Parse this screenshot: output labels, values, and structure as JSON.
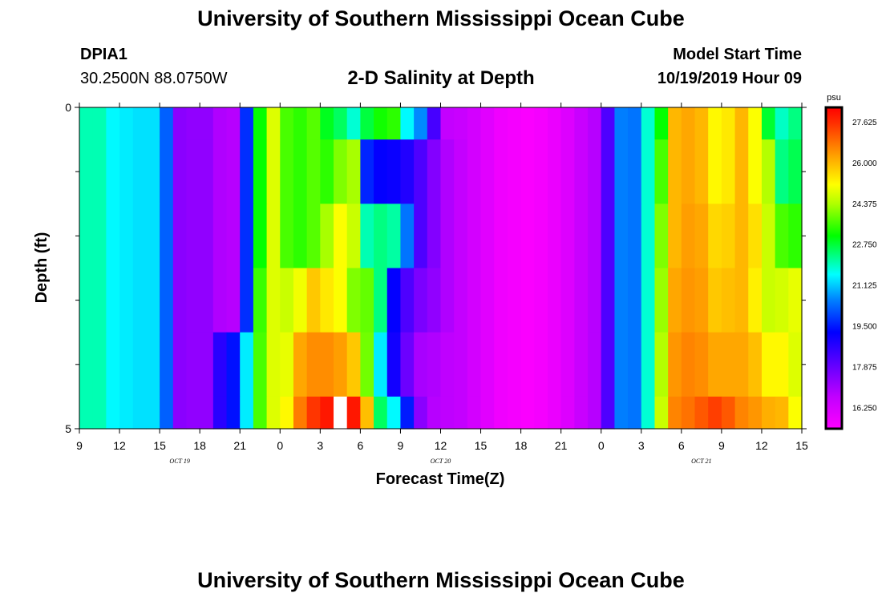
{
  "header": {
    "title": "University of Southern Mississippi Ocean Cube",
    "station_id": "DPIA1",
    "coordinates": "30.2500N 88.0750W",
    "subtitle": "2-D Salinity at Depth",
    "model_start_label": "Model Start Time",
    "model_start_value": "10/19/2019 Hour 09"
  },
  "footer": {
    "title": "University of Southern Mississippi Ocean Cube"
  },
  "chart_data": {
    "type": "heatmap",
    "title": "2-D Salinity at Depth",
    "xlabel": "Forecast Time(Z)",
    "ylabel": "Depth (ft)",
    "x_unit": "hours since 10/19/2019 09Z",
    "x_range": [
      0,
      54
    ],
    "y_range": [
      0,
      5
    ],
    "y_tick_labels": [
      {
        "value": 0,
        "label": "0"
      },
      {
        "value": 5,
        "label": "5"
      }
    ],
    "y_minor_ticks": [
      1,
      2,
      3,
      4
    ],
    "x_tick_labels": [
      "9",
      "12",
      "15",
      "18",
      "21",
      "0",
      "3",
      "6",
      "9",
      "12",
      "15",
      "18",
      "21",
      "0",
      "3",
      "6",
      "9",
      "12",
      "15"
    ],
    "date_labels": [
      {
        "label": "OCT 19",
        "hour": 7.5
      },
      {
        "label": "OCT 20",
        "hour": 27
      },
      {
        "label": "OCT 21",
        "hour": 46.5
      }
    ],
    "depth_bins": [
      "0-0.5",
      "0.5-1.5",
      "1.5-2.5",
      "2.5-3.5",
      "3.5-4.5",
      "4.5-5"
    ],
    "colorbar": {
      "unit": "psu",
      "min": 15.4,
      "max": 28.2,
      "tick_labels": [
        "27.625",
        "26.000",
        "24.375",
        "22.750",
        "21.125",
        "19.500",
        "17.875",
        "16.250"
      ]
    },
    "grid": false,
    "rows": [
      [
        22.0,
        22.0,
        21.5,
        21.4,
        21.3,
        21.3,
        20.2,
        17.4,
        17.3,
        17.3,
        16.9,
        16.8,
        19.7,
        23.1,
        24.8,
        23.6,
        23.4,
        23.7,
        22.9,
        22.5,
        21.8,
        22.7,
        23.2,
        23.4,
        21.5,
        20.6,
        18.3,
        16.6,
        16.5,
        16.3,
        16.0,
        15.7,
        15.6,
        15.5,
        15.6,
        15.8,
        16.1,
        16.5,
        16.8,
        18.2,
        20.5,
        20.4,
        21.8,
        23.1,
        26.0,
        26.2,
        26.0,
        25.2,
        25.4,
        26.0,
        25.1,
        22.8,
        21.9,
        22.3
      ],
      [
        22.0,
        22.0,
        21.5,
        21.4,
        21.3,
        21.3,
        20.2,
        17.4,
        17.3,
        17.3,
        16.9,
        16.8,
        19.7,
        23.1,
        24.8,
        23.6,
        23.4,
        23.7,
        23.4,
        24.0,
        24.3,
        19.6,
        19.2,
        19.1,
        18.8,
        18.2,
        17.5,
        16.9,
        16.6,
        16.3,
        16.0,
        15.7,
        15.6,
        15.5,
        15.6,
        15.8,
        16.1,
        16.5,
        16.8,
        18.2,
        20.5,
        20.4,
        21.8,
        23.6,
        26.0,
        26.2,
        26.0,
        25.2,
        25.4,
        26.0,
        25.1,
        24.4,
        22.3,
        22.6
      ],
      [
        22.0,
        22.0,
        21.5,
        21.4,
        21.3,
        21.3,
        20.2,
        17.4,
        17.3,
        17.3,
        16.9,
        16.8,
        19.7,
        23.1,
        24.8,
        23.6,
        23.4,
        23.7,
        24.3,
        25.1,
        24.6,
        22.0,
        22.3,
        22.1,
        20.4,
        18.2,
        17.5,
        16.9,
        16.6,
        16.3,
        16.0,
        15.7,
        15.6,
        15.5,
        15.6,
        15.8,
        16.1,
        16.5,
        16.8,
        18.2,
        20.5,
        20.4,
        21.8,
        24.0,
        26.0,
        26.3,
        26.2,
        25.6,
        25.7,
        26.0,
        25.5,
        24.6,
        23.6,
        23.4
      ],
      [
        22.0,
        22.0,
        21.5,
        21.4,
        21.3,
        21.3,
        20.2,
        17.4,
        17.3,
        17.3,
        16.9,
        16.8,
        19.7,
        23.5,
        24.8,
        24.6,
        25.0,
        25.8,
        25.4,
        25.1,
        24.0,
        23.8,
        22.3,
        19.2,
        18.2,
        17.6,
        17.3,
        16.9,
        16.6,
        16.3,
        16.0,
        15.7,
        15.6,
        15.5,
        15.6,
        15.8,
        16.1,
        16.5,
        16.8,
        18.2,
        20.5,
        20.4,
        21.8,
        24.2,
        26.2,
        26.4,
        26.3,
        25.8,
        25.9,
        26.0,
        25.3,
        24.6,
        24.7,
        24.9
      ],
      [
        22.0,
        22.0,
        21.5,
        21.4,
        21.3,
        21.3,
        20.2,
        17.4,
        17.3,
        17.3,
        18.7,
        19.4,
        21.4,
        23.6,
        24.8,
        24.9,
        26.2,
        26.5,
        26.5,
        26.3,
        25.8,
        23.9,
        21.4,
        19.0,
        17.8,
        17.0,
        16.9,
        16.7,
        16.6,
        16.3,
        16.0,
        15.7,
        15.6,
        15.5,
        15.6,
        15.8,
        16.1,
        16.5,
        16.8,
        18.2,
        20.5,
        20.4,
        21.8,
        24.4,
        26.4,
        26.6,
        26.5,
        26.2,
        26.2,
        26.2,
        25.9,
        25.2,
        25.2,
        24.8
      ],
      [
        22.0,
        22.0,
        21.5,
        21.4,
        21.3,
        21.3,
        20.2,
        17.4,
        17.3,
        17.3,
        18.7,
        19.4,
        21.4,
        23.6,
        24.8,
        25.2,
        26.7,
        27.5,
        27.9,
        28.3,
        27.9,
        25.9,
        22.5,
        21.5,
        19.5,
        17.4,
        16.8,
        16.7,
        16.6,
        16.3,
        16.0,
        15.7,
        15.6,
        15.5,
        15.6,
        15.8,
        16.1,
        16.5,
        16.8,
        18.2,
        20.5,
        20.4,
        21.8,
        24.6,
        26.6,
        26.8,
        27.1,
        27.4,
        27.1,
        26.6,
        26.4,
        26.1,
        26.0,
        25.1
      ]
    ]
  }
}
